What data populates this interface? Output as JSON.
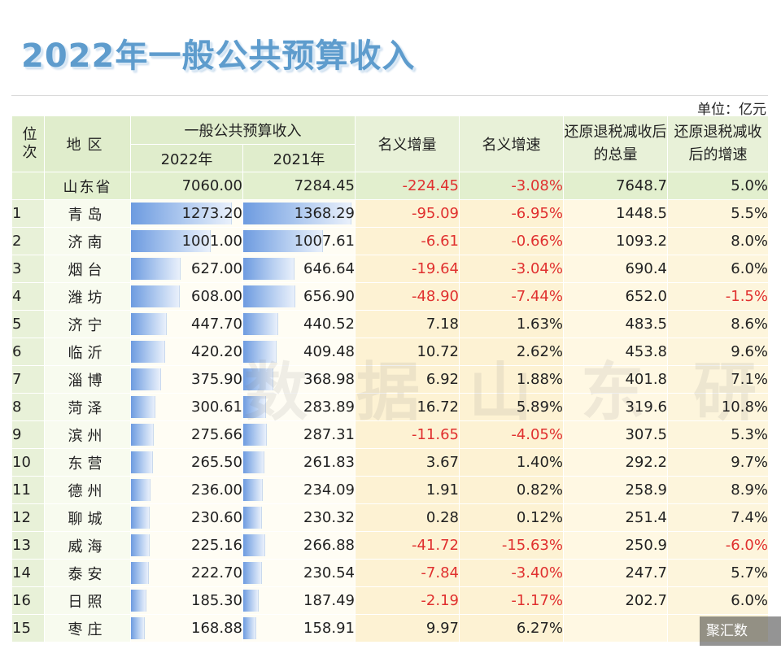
{
  "title": "2022年一般公共预算收入",
  "unit": "单位：亿元",
  "headers": {
    "rank": "位次",
    "region": "地区",
    "budget_group": "一般公共预算收入",
    "y2022": "2022年",
    "y2021": "2021年",
    "nominal_increase": "名义增量",
    "nominal_growth": "名义增速",
    "restored_total": "还原退税减收后的总量",
    "restored_growth": "还原退税减收后的增速"
  },
  "province": {
    "region": "山东省",
    "y2022": "7060.00",
    "y2021": "7284.45",
    "increase": "-224.45",
    "growth": "-3.08%",
    "total": "7648.7",
    "total_growth": "5.0%"
  },
  "rows": [
    {
      "rank": "1",
      "region": "青岛",
      "y2022": "1273.20",
      "y2021": "1368.29",
      "increase": "-95.09",
      "growth": "-6.95%",
      "total": "1448.5",
      "total_growth": "5.5%",
      "v22": 1273.2,
      "v21": 1368.29
    },
    {
      "rank": "2",
      "region": "济南",
      "y2022": "1001.00",
      "y2021": "1007.61",
      "increase": "-6.61",
      "growth": "-0.66%",
      "total": "1093.2",
      "total_growth": "8.0%",
      "v22": 1001.0,
      "v21": 1007.61
    },
    {
      "rank": "3",
      "region": "烟台",
      "y2022": "627.00",
      "y2021": "646.64",
      "increase": "-19.64",
      "growth": "-3.04%",
      "total": "690.4",
      "total_growth": "6.0%",
      "v22": 627.0,
      "v21": 646.64
    },
    {
      "rank": "4",
      "region": "潍坊",
      "y2022": "608.00",
      "y2021": "656.90",
      "increase": "-48.90",
      "growth": "-7.44%",
      "total": "652.0",
      "total_growth": "-1.5%",
      "v22": 608.0,
      "v21": 656.9
    },
    {
      "rank": "5",
      "region": "济宁",
      "y2022": "447.70",
      "y2021": "440.52",
      "increase": "7.18",
      "growth": "1.63%",
      "total": "483.5",
      "total_growth": "8.6%",
      "v22": 447.7,
      "v21": 440.52
    },
    {
      "rank": "6",
      "region": "临沂",
      "y2022": "420.20",
      "y2021": "409.48",
      "increase": "10.72",
      "growth": "2.62%",
      "total": "453.8",
      "total_growth": "9.6%",
      "v22": 420.2,
      "v21": 409.48
    },
    {
      "rank": "7",
      "region": "淄博",
      "y2022": "375.90",
      "y2021": "368.98",
      "increase": "6.92",
      "growth": "1.88%",
      "total": "401.8",
      "total_growth": "7.1%",
      "v22": 375.9,
      "v21": 368.98
    },
    {
      "rank": "8",
      "region": "菏泽",
      "y2022": "300.61",
      "y2021": "283.89",
      "increase": "16.72",
      "growth": "5.89%",
      "total": "319.6",
      "total_growth": "10.8%",
      "v22": 300.61,
      "v21": 283.89
    },
    {
      "rank": "9",
      "region": "滨州",
      "y2022": "275.66",
      "y2021": "287.31",
      "increase": "-11.65",
      "growth": "-4.05%",
      "total": "307.5",
      "total_growth": "5.3%",
      "v22": 275.66,
      "v21": 287.31
    },
    {
      "rank": "10",
      "region": "东营",
      "y2022": "265.50",
      "y2021": "261.83",
      "increase": "3.67",
      "growth": "1.40%",
      "total": "292.2",
      "total_growth": "9.7%",
      "v22": 265.5,
      "v21": 261.83
    },
    {
      "rank": "11",
      "region": "德州",
      "y2022": "236.00",
      "y2021": "234.09",
      "increase": "1.91",
      "growth": "0.82%",
      "total": "258.9",
      "total_growth": "8.9%",
      "v22": 236.0,
      "v21": 234.09
    },
    {
      "rank": "12",
      "region": "聊城",
      "y2022": "230.60",
      "y2021": "230.32",
      "increase": "0.28",
      "growth": "0.12%",
      "total": "251.4",
      "total_growth": "7.4%",
      "v22": 230.6,
      "v21": 230.32
    },
    {
      "rank": "13",
      "region": "威海",
      "y2022": "225.16",
      "y2021": "266.88",
      "increase": "-41.72",
      "growth": "-15.63%",
      "total": "250.9",
      "total_growth": "-6.0%",
      "v22": 225.16,
      "v21": 266.88
    },
    {
      "rank": "14",
      "region": "泰安",
      "y2022": "222.70",
      "y2021": "230.54",
      "increase": "-7.84",
      "growth": "-3.40%",
      "total": "247.7",
      "total_growth": "5.7%",
      "v22": 222.7,
      "v21": 230.54
    },
    {
      "rank": "16",
      "region": "日照",
      "y2022": "185.30",
      "y2021": "187.49",
      "increase": "-2.19",
      "growth": "-1.17%",
      "total": "202.7",
      "total_growth": "6.0%",
      "v22": 185.3,
      "v21": 187.49
    },
    {
      "rank": "15",
      "region": "枣庄",
      "y2022": "168.88",
      "y2021": "158.91",
      "increase": "9.97",
      "growth": "6.27%",
      "total": "",
      "total_growth": "",
      "v22": 168.88,
      "v21": 158.91
    }
  ],
  "watermark": "数据山东研",
  "badge": "聚汇数"
}
